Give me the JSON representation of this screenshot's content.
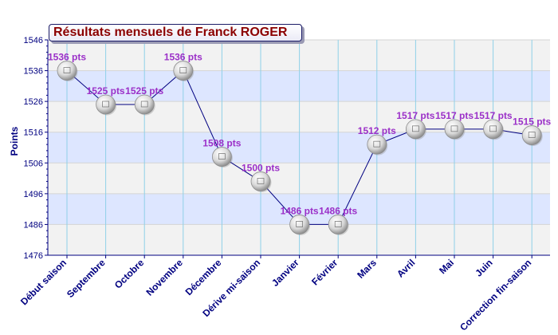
{
  "chart_data": {
    "type": "line",
    "title": "Résultats mensuels de Franck ROGER",
    "xlabel": "",
    "ylabel": "Points",
    "ylim": [
      1476,
      1546
    ],
    "yticks": [
      1476,
      1486,
      1496,
      1506,
      1516,
      1526,
      1536,
      1546
    ],
    "grid": true,
    "legend": "none",
    "categories": [
      "Début saison",
      "Septembre",
      "Octobre",
      "Novembre",
      "Décembre",
      "Dérive mi-saison",
      "Janvier",
      "Février",
      "Mars",
      "Avril",
      "Mai",
      "Juin",
      "Correction fin-saison"
    ],
    "series": [
      {
        "values": [
          1536,
          1525,
          1525,
          1536,
          1508,
          1500,
          1486,
          1486,
          1512,
          1517,
          1517,
          1517,
          1515
        ],
        "data_labels": [
          "1536 pts",
          "1525 pts",
          "1525 pts",
          "1536 pts",
          "1508 pts",
          "1500 pts",
          "1486 pts",
          "1486 pts",
          "1512 pts",
          "1517 pts",
          "1517 pts",
          "1517 pts",
          "1515 pts"
        ]
      }
    ],
    "colors": {
      "line": "#000080",
      "label": "#9b30c8",
      "title": "#8b0000",
      "axis_text": "#000080",
      "band_blue": "#dde6ff",
      "band_gray": "#f2f2f2",
      "vgrid": "#8fd0e8",
      "marker": "#c8c8c8"
    }
  }
}
